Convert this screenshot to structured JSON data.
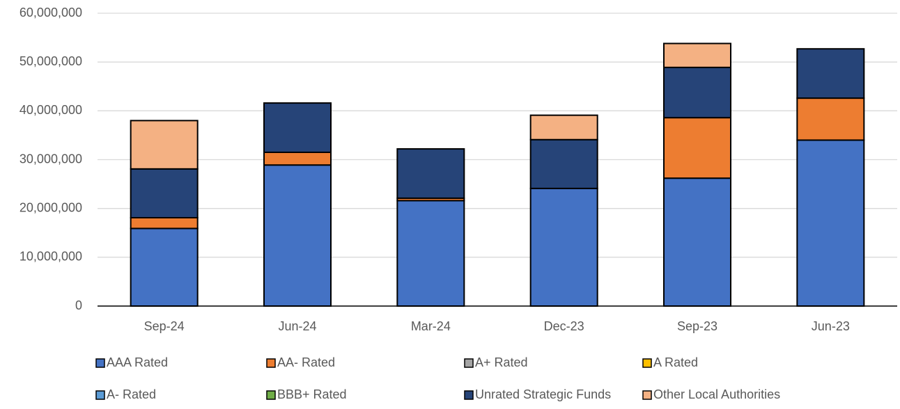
{
  "chart_data": {
    "type": "stacked_bar",
    "categories": [
      "Sep-24",
      "Jun-24",
      "Mar-24",
      "Dec-23",
      "Sep-23",
      "Jun-23"
    ],
    "series": [
      {
        "name": "AAA Rated",
        "color": "#4472c4",
        "values": [
          15900000.0,
          28900000.0,
          21600000.0,
          24100000.0,
          26200000.0,
          34000000.0
        ]
      },
      {
        "name": "AA- Rated",
        "color": "#ed7d31",
        "values": [
          2200000.0,
          2600000.0,
          500000.0,
          0,
          12400000.0,
          8600000.0
        ]
      },
      {
        "name": "A+ Rated",
        "color": "#a5a5a5",
        "values": [
          0,
          0,
          0,
          0,
          0,
          0
        ]
      },
      {
        "name": "A Rated",
        "color": "#ffc000",
        "values": [
          0,
          0,
          0,
          0,
          0,
          0
        ]
      },
      {
        "name": "A- Rated",
        "color": "#5b9bd5",
        "values": [
          0,
          0,
          0,
          0,
          0,
          0
        ]
      },
      {
        "name": "BBB+ Rated",
        "color": "#70ad47",
        "values": [
          0,
          0,
          0,
          0,
          0,
          0
        ]
      },
      {
        "name": "Unrated Strategic Funds",
        "color": "#264478",
        "values": [
          10000000.0,
          10100000.0,
          10100000.0,
          10000000.0,
          10300000.0,
          10100000.0
        ]
      },
      {
        "name": "Other Local Authorities",
        "color": "#f4b183",
        "values": [
          9900000.0,
          0,
          0,
          5000000.0,
          4900000.0,
          0
        ]
      }
    ],
    "ylim": [
      0,
      60000000
    ],
    "yticks": [
      0,
      {
        "value": 10000000,
        "label": "10,000,000"
      },
      {
        "value": 20000000,
        "label": "20,000,000"
      },
      {
        "value": 30000000,
        "label": "30,000,000"
      },
      {
        "value": 40000000,
        "label": "40,000,000"
      },
      {
        "value": 50000000,
        "label": "50,000,000"
      },
      {
        "value": 60000000,
        "label": "60,000,000"
      }
    ],
    "grid": true,
    "legend": "bottom"
  }
}
